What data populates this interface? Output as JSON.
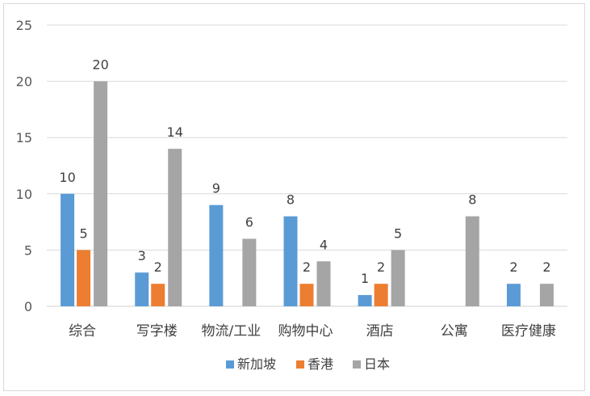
{
  "chart_data": {
    "type": "bar",
    "categories": [
      "综合",
      "写字楼",
      "物流/工业",
      "购物中心",
      "酒店",
      "公寓",
      "医疗健康"
    ],
    "series": [
      {
        "name": "新加坡",
        "color": "#5b9bd5",
        "values": [
          10,
          3,
          9,
          8,
          1,
          null,
          2
        ]
      },
      {
        "name": "香港",
        "color": "#ed7d31",
        "values": [
          5,
          2,
          null,
          2,
          2,
          null,
          null
        ]
      },
      {
        "name": "日本",
        "color": "#a5a5a5",
        "values": [
          20,
          14,
          6,
          4,
          5,
          8,
          2
        ]
      }
    ],
    "ylim": [
      0,
      25
    ],
    "yticks": [
      0,
      5,
      10,
      15,
      20,
      25
    ],
    "grid": true,
    "legend": "bottom",
    "data_labels": true
  }
}
